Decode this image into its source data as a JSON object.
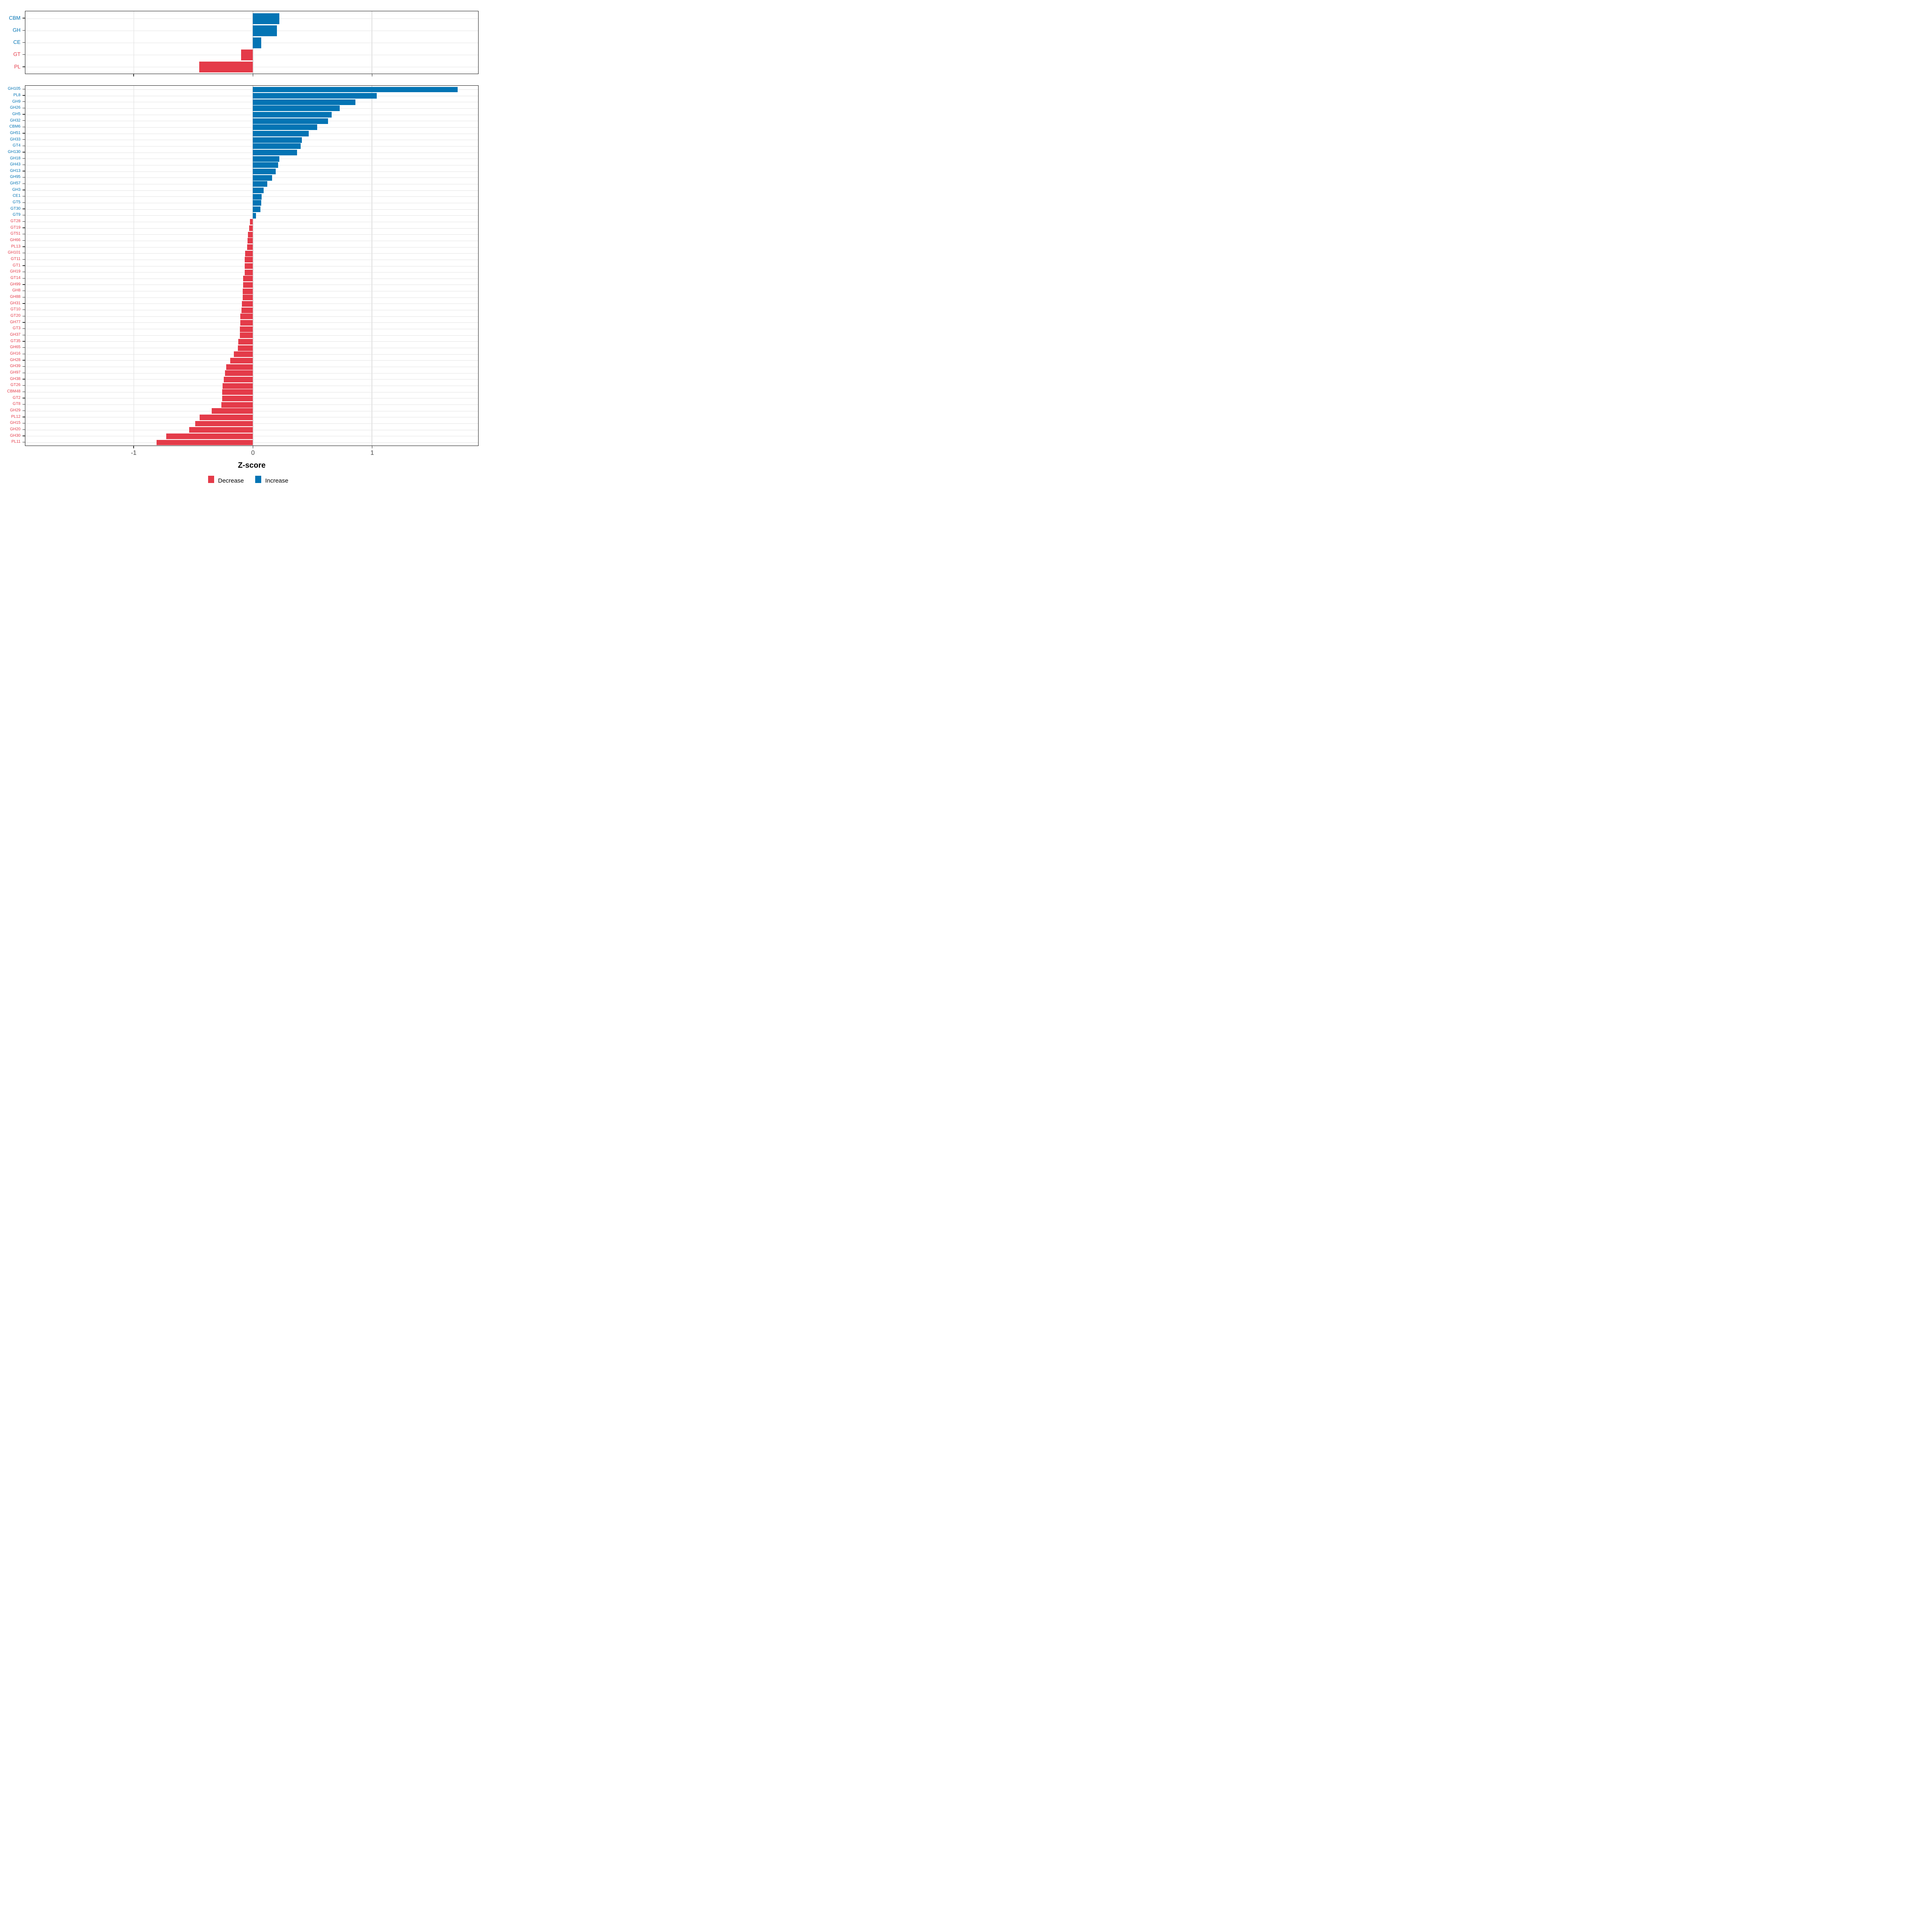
{
  "colors": {
    "increase": "#0374B4",
    "decrease": "#E43B49",
    "grid_vertical": "#DEDEDE",
    "grid_horizontal": "#E4E4E4",
    "panel_border": "#1A1A1A",
    "axis_text": "#4A4A4A"
  },
  "axis": {
    "title": "Z-score",
    "ticks": [
      -1,
      0,
      1
    ],
    "tick_labels": [
      "-1",
      "0",
      "1"
    ],
    "xmin": -1.912,
    "xmax": 1.892
  },
  "legend": {
    "items": [
      {
        "label": "Decrease",
        "key": "decrease"
      },
      {
        "label": "Increase",
        "key": "increase"
      }
    ]
  },
  "chart_data": [
    {
      "type": "bar",
      "orientation": "horizontal",
      "panel": "top",
      "xlabel": "Z-score",
      "xlim": [
        -1.91,
        1.89
      ],
      "grid": true,
      "categories": [
        "CBM",
        "GH",
        "CE",
        "GT",
        "PL"
      ],
      "values": [
        0.22,
        0.2,
        0.07,
        -0.1,
        -0.45
      ]
    },
    {
      "type": "bar",
      "orientation": "horizontal",
      "panel": "bottom",
      "xlabel": "Z-score",
      "xlim": [
        -1.91,
        1.89
      ],
      "grid": true,
      "legend_position": "bottom",
      "categories": [
        "GH105",
        "PL8",
        "GH9",
        "GH26",
        "GH5",
        "GH32",
        "CBM6",
        "GH51",
        "GH33",
        "GT4",
        "GH130",
        "GH18",
        "GH43",
        "GH13",
        "GH95",
        "GH57",
        "GH3",
        "CE1",
        "GT5",
        "GT30",
        "GT9",
        "GT28",
        "GT19",
        "GT51",
        "GH66",
        "PL13",
        "GH101",
        "GT11",
        "GT1",
        "GH19",
        "GT14",
        "GH99",
        "GH8",
        "GH88",
        "GH31",
        "GT10",
        "GT20",
        "GH77",
        "GT3",
        "GH37",
        "GT35",
        "GH65",
        "GH16",
        "GH28",
        "GH39",
        "GH97",
        "GH38",
        "GT26",
        "CBM48",
        "GT2",
        "GT8",
        "GH29",
        "PL12",
        "GH15",
        "GH20",
        "GH30",
        "PL11"
      ],
      "values": [
        1.72,
        1.04,
        0.86,
        0.73,
        0.66,
        0.63,
        0.54,
        0.47,
        0.41,
        0.4,
        0.37,
        0.22,
        0.21,
        0.19,
        0.16,
        0.12,
        0.09,
        0.073,
        0.068,
        0.062,
        0.027,
        -0.024,
        -0.033,
        -0.041,
        -0.045,
        -0.05,
        -0.065,
        -0.068,
        -0.069,
        -0.07,
        -0.082,
        -0.084,
        -0.085,
        -0.087,
        -0.094,
        -0.097,
        -0.105,
        -0.107,
        -0.109,
        -0.11,
        -0.122,
        -0.126,
        -0.16,
        -0.19,
        -0.226,
        -0.234,
        -0.246,
        -0.254,
        -0.257,
        -0.26,
        -0.264,
        -0.345,
        -0.447,
        -0.486,
        -0.537,
        -0.73,
        -0.81
      ]
    }
  ]
}
